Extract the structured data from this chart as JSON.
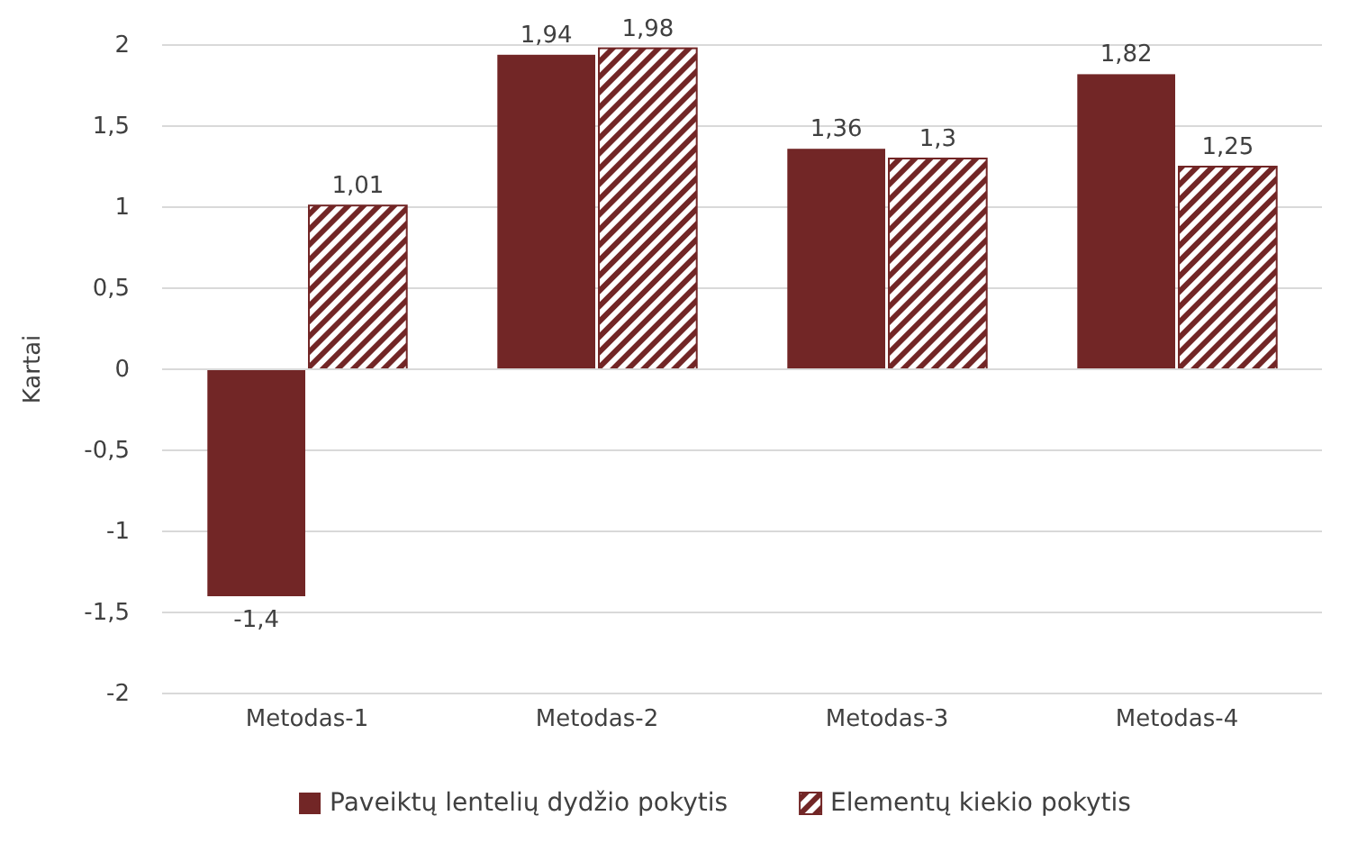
{
  "chart_data": {
    "type": "bar",
    "ylabel": "Kartai",
    "categories": [
      "Metodas-1",
      "Metodas-2",
      "Metodas-3",
      "Metodas-4"
    ],
    "series": [
      {
        "name": "Paveiktų lentelių dydžio pokytis",
        "color": "#722626",
        "values": [
          -1.4,
          1.94,
          1.36,
          1.82
        ],
        "value_labels": [
          "-1,4",
          "1,94",
          "1,36",
          "1,82"
        ]
      },
      {
        "name": "Elementų kiekio pokytis",
        "color": "#722626",
        "values": [
          1.01,
          1.98,
          1.3,
          1.25
        ],
        "value_labels": [
          "1,01",
          "1,98",
          "1,3",
          "1,25"
        ]
      }
    ],
    "ylim": [
      -2,
      2
    ],
    "yticks": [
      {
        "value": -2,
        "label": "-2"
      },
      {
        "value": -1.5,
        "label": "-1,5"
      },
      {
        "value": -1,
        "label": "-1"
      },
      {
        "value": -0.5,
        "label": "-0,5"
      },
      {
        "value": 0,
        "label": "0"
      },
      {
        "value": 0.5,
        "label": "0,5"
      },
      {
        "value": 1,
        "label": "1"
      },
      {
        "value": 1.5,
        "label": "1,5"
      },
      {
        "value": 2,
        "label": "2"
      }
    ],
    "grid": "y",
    "legend": "bottom"
  }
}
